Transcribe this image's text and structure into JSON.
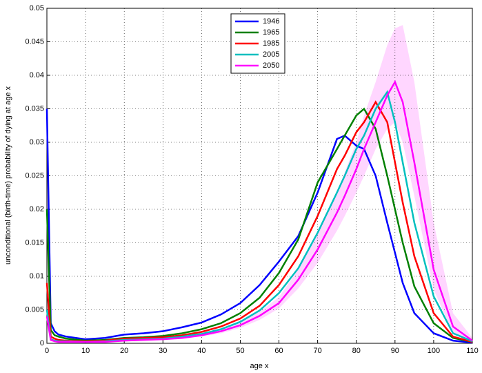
{
  "chart_data": {
    "type": "line",
    "xlabel": "age x",
    "ylabel": "unconditional (birth-time) probability of dying at age x",
    "x": [
      0,
      1,
      2,
      3,
      5,
      10,
      15,
      20,
      25,
      30,
      35,
      40,
      45,
      50,
      55,
      60,
      65,
      70,
      75,
      77,
      80,
      82,
      85,
      88,
      90,
      92,
      95,
      100,
      105,
      110
    ],
    "series": [
      {
        "name": "1946",
        "color": "#0000ff",
        "values": [
          0.035,
          0.003,
          0.0018,
          0.0013,
          0.001,
          0.0006,
          0.0008,
          0.0013,
          0.0015,
          0.0018,
          0.0024,
          0.0031,
          0.0043,
          0.006,
          0.0087,
          0.0122,
          0.016,
          0.0225,
          0.0305,
          0.031,
          0.0295,
          0.029,
          0.025,
          0.018,
          0.0135,
          0.009,
          0.0045,
          0.0015,
          0.0004,
          0.0001
        ]
      },
      {
        "name": "1965",
        "color": "#008000",
        "values": [
          0.02,
          0.002,
          0.0012,
          0.001,
          0.0007,
          0.0004,
          0.0005,
          0.0008,
          0.0009,
          0.0011,
          0.0015,
          0.0021,
          0.003,
          0.0045,
          0.0068,
          0.0105,
          0.0155,
          0.024,
          0.029,
          0.031,
          0.034,
          0.035,
          0.032,
          0.025,
          0.02,
          0.015,
          0.0085,
          0.003,
          0.0008,
          0.0002
        ]
      },
      {
        "name": "1985",
        "color": "#ff0000",
        "values": [
          0.009,
          0.001,
          0.0007,
          0.0005,
          0.0004,
          0.0003,
          0.0004,
          0.0007,
          0.0008,
          0.0009,
          0.0012,
          0.0017,
          0.0025,
          0.0037,
          0.0056,
          0.0087,
          0.013,
          0.019,
          0.026,
          0.028,
          0.0315,
          0.033,
          0.036,
          0.033,
          0.027,
          0.021,
          0.013,
          0.0045,
          0.001,
          0.0002
        ]
      },
      {
        "name": "2005",
        "color": "#00bfbf",
        "values": [
          0.005,
          0.0006,
          0.0004,
          0.0003,
          0.0003,
          0.0002,
          0.0003,
          0.0005,
          0.0006,
          0.0007,
          0.001,
          0.0014,
          0.0021,
          0.0032,
          0.0049,
          0.0075,
          0.0112,
          0.0165,
          0.0225,
          0.025,
          0.029,
          0.031,
          0.035,
          0.0375,
          0.033,
          0.027,
          0.018,
          0.007,
          0.0015,
          0.0003
        ]
      },
      {
        "name": "2050",
        "color": "#ff00ff",
        "values": [
          0.004,
          0.0005,
          0.0003,
          0.0002,
          0.0002,
          0.0002,
          0.0002,
          0.0004,
          0.0005,
          0.0006,
          0.0008,
          0.0012,
          0.0018,
          0.0027,
          0.0041,
          0.006,
          0.0095,
          0.014,
          0.0195,
          0.022,
          0.026,
          0.029,
          0.033,
          0.037,
          0.039,
          0.036,
          0.027,
          0.011,
          0.0025,
          0.0004
        ]
      }
    ],
    "band": {
      "color": "#ffccff",
      "lower": [
        0.003,
        0.0004,
        0.0002,
        0.0002,
        0.0002,
        0.0001,
        0.0002,
        0.0003,
        0.0004,
        0.0005,
        0.0007,
        0.001,
        0.0015,
        0.0023,
        0.0035,
        0.0052,
        0.0082,
        0.012,
        0.0168,
        0.019,
        0.0225,
        0.025,
        0.029,
        0.032,
        0.033,
        0.03,
        0.022,
        0.008,
        0.0015,
        0.0002
      ],
      "upper": [
        0.005,
        0.0006,
        0.0004,
        0.0003,
        0.0003,
        0.0002,
        0.0003,
        0.0005,
        0.0006,
        0.0007,
        0.001,
        0.0014,
        0.0021,
        0.0031,
        0.0047,
        0.0069,
        0.011,
        0.0162,
        0.0225,
        0.0255,
        0.03,
        0.034,
        0.039,
        0.0445,
        0.047,
        0.0475,
        0.039,
        0.018,
        0.0045,
        0.0008
      ]
    },
    "xlim": [
      0,
      110
    ],
    "xticks": [
      0,
      10,
      20,
      30,
      40,
      50,
      60,
      70,
      80,
      90,
      100,
      110
    ],
    "ylim": [
      0,
      0.05
    ],
    "yticks": [
      0,
      0.005,
      0.01,
      0.015,
      0.02,
      0.025,
      0.03,
      0.035,
      0.04,
      0.045,
      0.05
    ],
    "grid": true,
    "legend": "top"
  }
}
